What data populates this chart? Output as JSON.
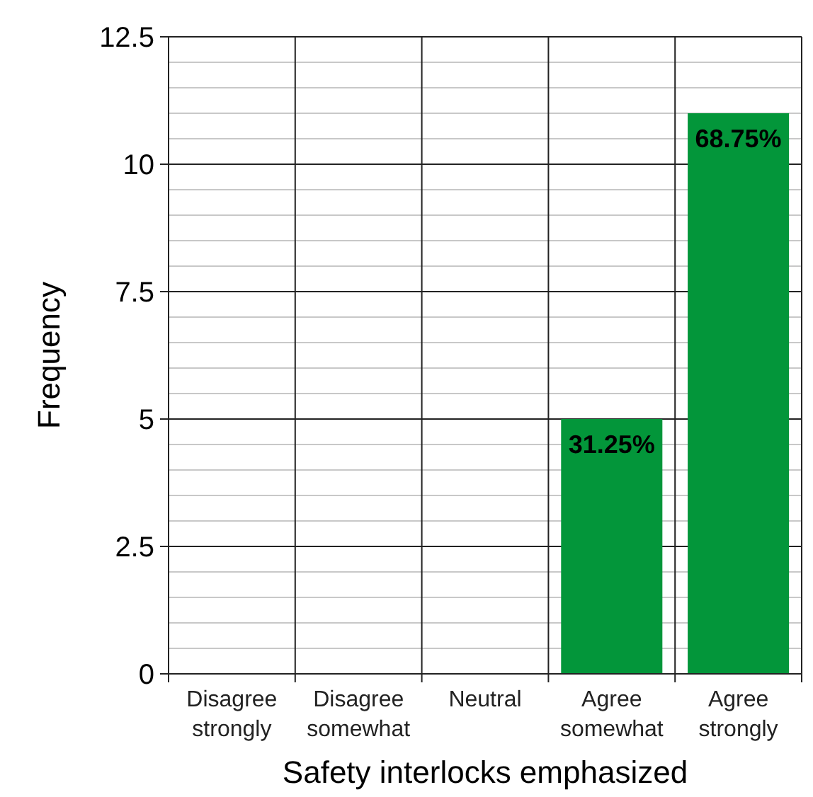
{
  "chart_data": {
    "type": "bar",
    "xlabel": "Safety interlocks emphasized",
    "ylabel": "Frequency",
    "categories": [
      "Disagree strongly",
      "Disagree somewhat",
      "Neutral",
      "Agree somewhat",
      "Agree strongly"
    ],
    "values": [
      0,
      0,
      0,
      5,
      11
    ],
    "annotations": [
      {
        "text": "31.25%",
        "x": "Agree somewhat",
        "y": 5
      },
      {
        "text": "68.75%",
        "x": "Agree strongly",
        "y": 11
      }
    ],
    "color": "#03963a",
    "ylim": [
      0,
      12.5
    ],
    "yticks": [
      0,
      2.5,
      5,
      7.5,
      10,
      12.5
    ],
    "grid": true
  }
}
